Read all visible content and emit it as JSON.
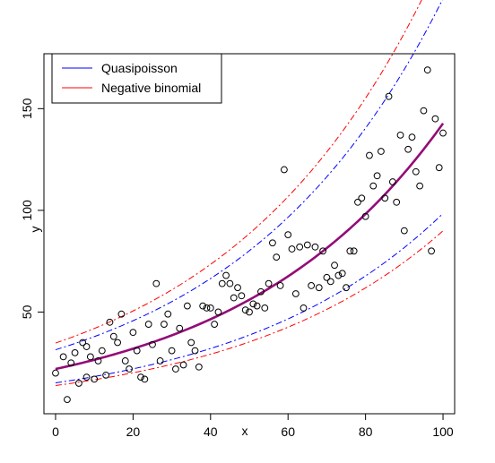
{
  "chart_data": {
    "type": "scatter",
    "xlabel": "x",
    "ylabel": "y",
    "xlim": [
      -3,
      103
    ],
    "ylim": [
      0,
      177
    ],
    "x_ticks": [
      0,
      20,
      40,
      60,
      80,
      100
    ],
    "y_ticks": [
      50,
      100,
      150
    ],
    "legend": {
      "placement": "top-left",
      "entries": [
        {
          "label": "Quasipoisson",
          "color": "#0000ff"
        },
        {
          "label": "Negative binomial",
          "color": "#ff0000"
        }
      ]
    },
    "points": [
      [
        0,
        20
      ],
      [
        2,
        28
      ],
      [
        3,
        7
      ],
      [
        4,
        25
      ],
      [
        5,
        30
      ],
      [
        6,
        15
      ],
      [
        7,
        35
      ],
      [
        8,
        33
      ],
      [
        8,
        18
      ],
      [
        9,
        28
      ],
      [
        10,
        17
      ],
      [
        11,
        26
      ],
      [
        12,
        31
      ],
      [
        13,
        19
      ],
      [
        14,
        45
      ],
      [
        15,
        38
      ],
      [
        16,
        35
      ],
      [
        17,
        49
      ],
      [
        18,
        26
      ],
      [
        19,
        22
      ],
      [
        20,
        40
      ],
      [
        21,
        31
      ],
      [
        22,
        18
      ],
      [
        23,
        17
      ],
      [
        24,
        44
      ],
      [
        25,
        34
      ],
      [
        26,
        64
      ],
      [
        27,
        26
      ],
      [
        28,
        44
      ],
      [
        29,
        49
      ],
      [
        30,
        31
      ],
      [
        31,
        22
      ],
      [
        32,
        42
      ],
      [
        33,
        24
      ],
      [
        34,
        53
      ],
      [
        35,
        35
      ],
      [
        36,
        31
      ],
      [
        37,
        23
      ],
      [
        38,
        53
      ],
      [
        39,
        52
      ],
      [
        40,
        52
      ],
      [
        41,
        44
      ],
      [
        42,
        50
      ],
      [
        43,
        64
      ],
      [
        44,
        68
      ],
      [
        45,
        64
      ],
      [
        46,
        57
      ],
      [
        47,
        62
      ],
      [
        48,
        58
      ],
      [
        49,
        51
      ],
      [
        50,
        50
      ],
      [
        51,
        54
      ],
      [
        52,
        53
      ],
      [
        53,
        60
      ],
      [
        54,
        52
      ],
      [
        55,
        64
      ],
      [
        56,
        84
      ],
      [
        57,
        77
      ],
      [
        58,
        63
      ],
      [
        59,
        120
      ],
      [
        60,
        88
      ],
      [
        61,
        81
      ],
      [
        62,
        59
      ],
      [
        63,
        82
      ],
      [
        64,
        52
      ],
      [
        65,
        83
      ],
      [
        66,
        63
      ],
      [
        67,
        82
      ],
      [
        68,
        62
      ],
      [
        69,
        80
      ],
      [
        70,
        67
      ],
      [
        71,
        65
      ],
      [
        72,
        73
      ],
      [
        73,
        68
      ],
      [
        74,
        69
      ],
      [
        75,
        62
      ],
      [
        76,
        80
      ],
      [
        77,
        80
      ],
      [
        78,
        104
      ],
      [
        79,
        106
      ],
      [
        80,
        97
      ],
      [
        81,
        127
      ],
      [
        82,
        112
      ],
      [
        83,
        117
      ],
      [
        84,
        129
      ],
      [
        85,
        106
      ],
      [
        86,
        156
      ],
      [
        87,
        114
      ],
      [
        88,
        104
      ],
      [
        89,
        137
      ],
      [
        90,
        90
      ],
      [
        91,
        130
      ],
      [
        92,
        136
      ],
      [
        93,
        119
      ],
      [
        94,
        112
      ],
      [
        95,
        149
      ],
      [
        96,
        169
      ],
      [
        97,
        80
      ],
      [
        98,
        145
      ],
      [
        99,
        121
      ],
      [
        100,
        138
      ]
    ],
    "series": [
      {
        "name": "Quasipoisson",
        "color": "#0000ff",
        "fit": {
          "a": 22,
          "b": 0.0187
        },
        "band": {
          "lower_factor": 0.69,
          "upper_factor": 1.43
        }
      },
      {
        "name": "Negative binomial",
        "color": "#ff0000",
        "fit": {
          "a": 22,
          "b": 0.0187
        },
        "band": {
          "lower_factor": 0.63,
          "upper_factor": 1.58
        }
      }
    ]
  }
}
